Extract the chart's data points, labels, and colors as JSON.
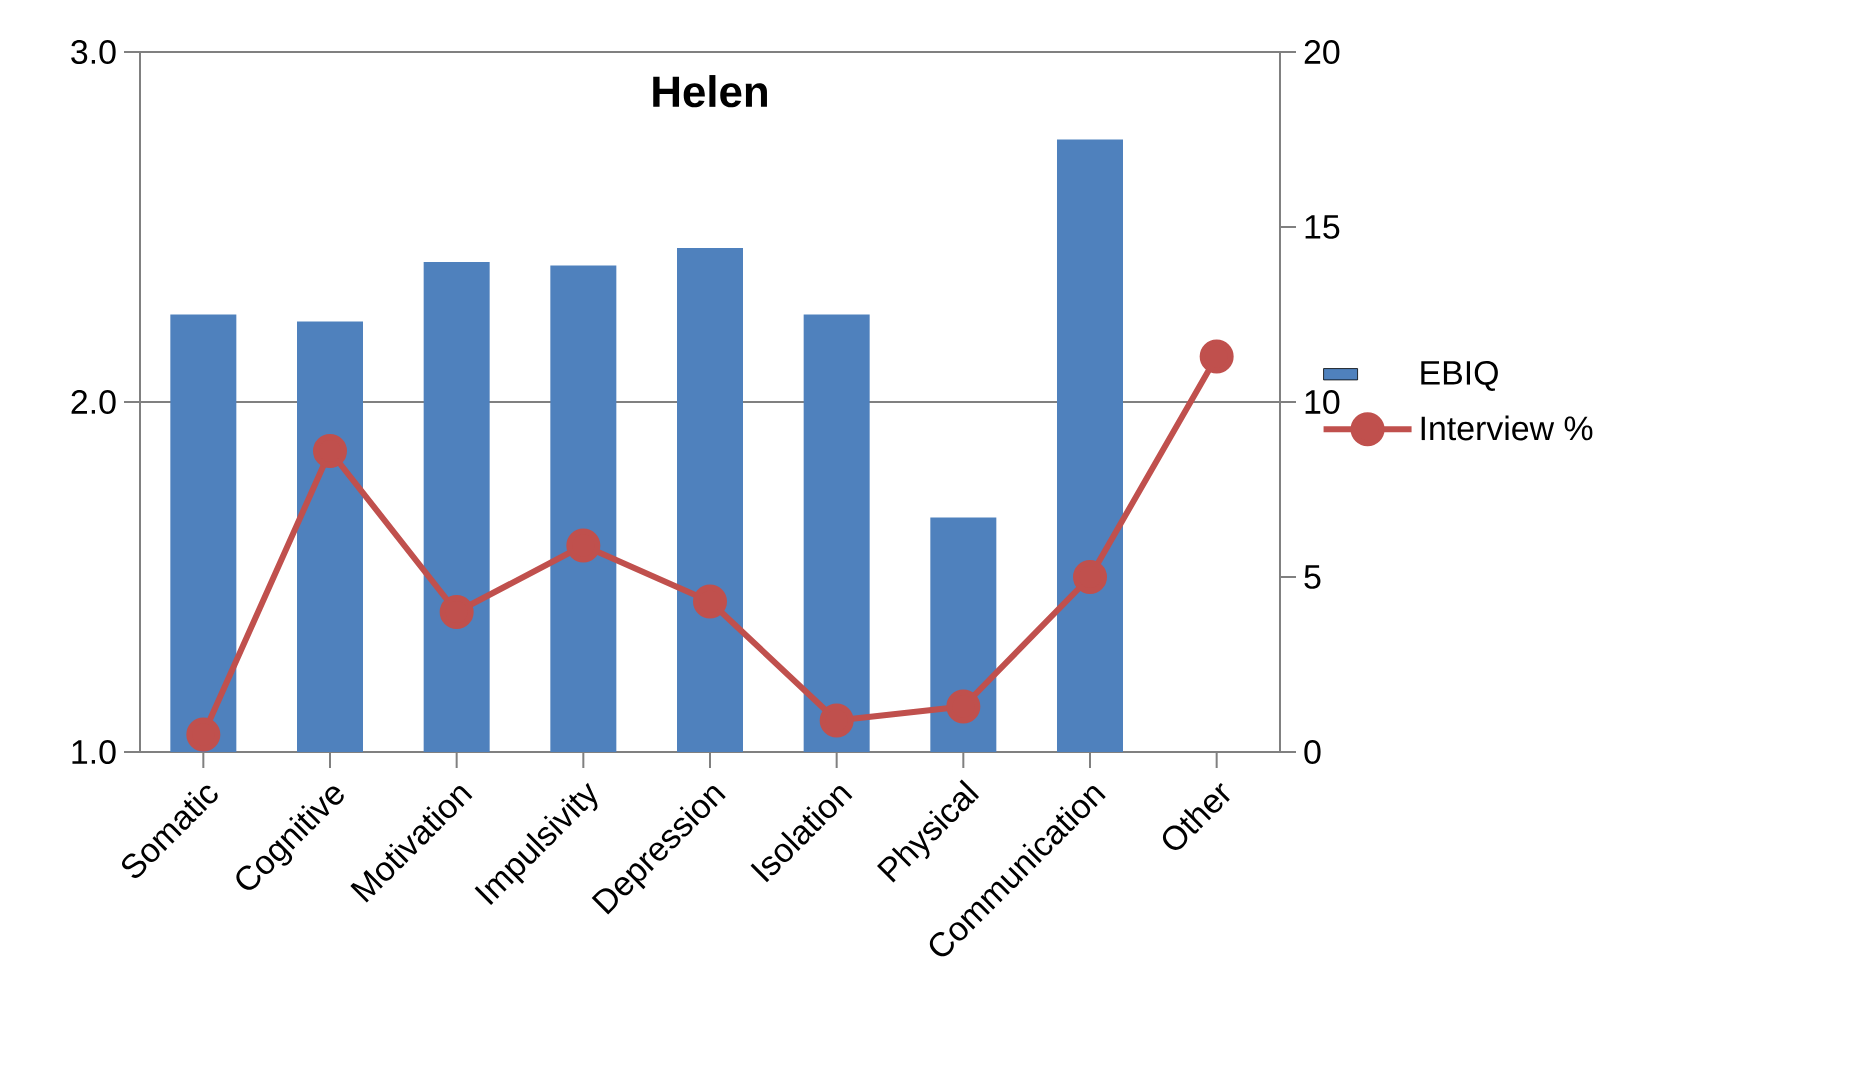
{
  "chart_data": {
    "type": "bar",
    "title": "Helen",
    "categories": [
      "Somatic",
      "Cognitive",
      "Motivation",
      "Impulsivity",
      "Depression",
      "Isolation",
      "Physical",
      "Communication",
      "Other"
    ],
    "series": [
      {
        "name": "EBIQ",
        "color": "#4f81bd",
        "values": [
          2.25,
          2.23,
          2.4,
          2.39,
          2.44,
          2.25,
          1.67,
          2.75,
          null
        ]
      },
      {
        "name": "Interview %",
        "type": "line",
        "axis": "y2",
        "marker": "circle",
        "color": "#c0504d",
        "values": [
          0.5,
          8.6,
          4.0,
          5.9,
          4.3,
          0.9,
          1.3,
          5.0,
          11.3
        ]
      }
    ],
    "ylim": [
      1,
      3
    ],
    "yticks": [
      {
        "value": 1,
        "label": "1.0"
      },
      {
        "value": 2,
        "label": "2.0"
      },
      {
        "value": 3,
        "label": "3.0"
      }
    ],
    "y2lim": [
      0,
      20
    ],
    "y2ticks": [
      0,
      5,
      10,
      15,
      20
    ],
    "grid": "y",
    "legend": "right"
  }
}
